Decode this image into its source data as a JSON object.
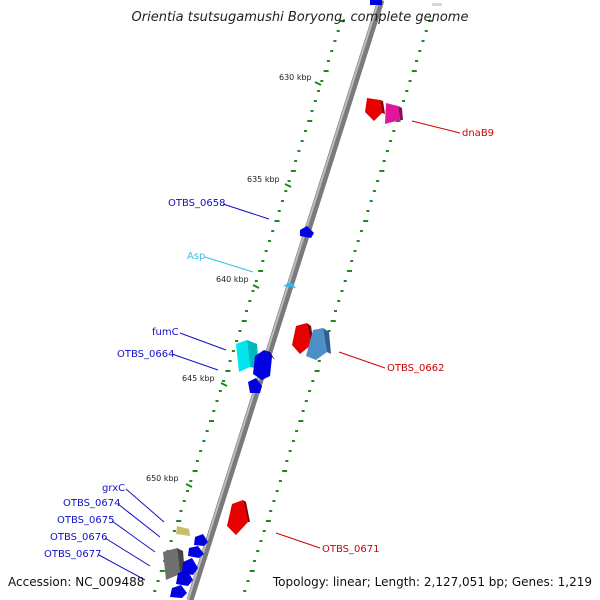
{
  "title": "Orientia tsutsugamushi Boryong, complete genome",
  "footer": {
    "accession": "Accession: NC_009488",
    "summary": "Topology: linear; Length: 2,127,051 bp; Genes: 1,219"
  },
  "ticks": [
    "630 kbp",
    "635 kbp",
    "640 kbp",
    "645 kbp",
    "650 kbp"
  ],
  "gene_labels": {
    "dnaB9": "dnaB9",
    "OTBS_0658": "OTBS_0658",
    "Asp": "Asp",
    "fumC": "fumC",
    "OTBS_0664": "OTBS_0664",
    "OTBS_0662": "OTBS_0662",
    "grxC": "grxC",
    "OTBS_0674": "OTBS_0674",
    "OTBS_0675": "OTBS_0675",
    "OTBS_0676": "OTBS_0676",
    "OTBS_0677": "OTBS_0677",
    "OTBS_0671": "OTBS_0671"
  },
  "colors": {
    "backbone": "#8a8a8a",
    "tick": "#1d8a1d",
    "red": "#e60000",
    "magenta": "#e0179a",
    "blue": "#0000e0",
    "cyan": "#00e5ee",
    "steelblue": "#4f8fc8",
    "lightblue": "#35b6e6",
    "khaki": "#c8be6a",
    "gray": "#6f6f6f",
    "label_blue": "#1010c8",
    "label_red": "#d00000",
    "label_cyan": "#35c0e6"
  }
}
